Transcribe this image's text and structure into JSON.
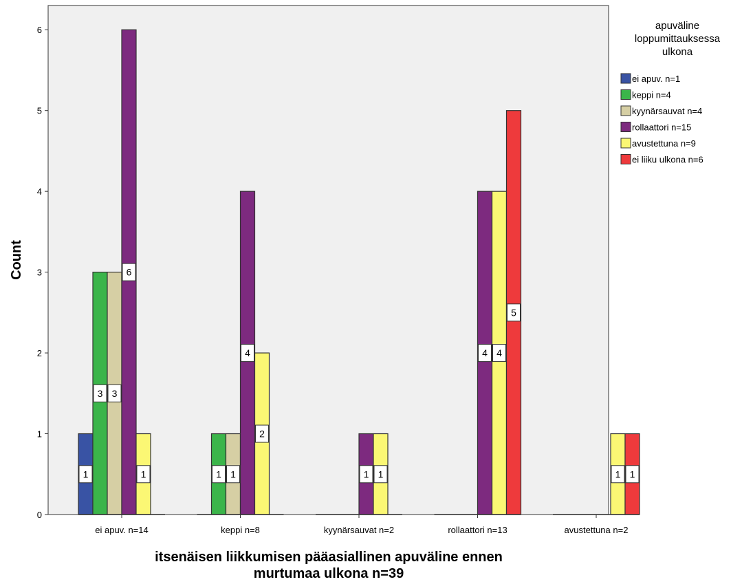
{
  "chart_data": {
    "type": "bar",
    "title": "",
    "xlabel_lines": [
      "itsenäisen liikkumisen pääasiallinen apuväline ennen",
      "murtumaa ulkona n=39"
    ],
    "ylabel": "Count",
    "ylim": [
      0,
      6.3
    ],
    "yticks": [
      "0",
      "1",
      "2",
      "3",
      "4",
      "5",
      "6"
    ],
    "categories": [
      "ei apuv. n=14",
      "keppi n=8",
      "kyynärsauvat n=2",
      "rollaattori n=13",
      "avustettuna n=2"
    ],
    "legend": {
      "title_lines": [
        "apuväline",
        "loppumittauksessa",
        "ulkona"
      ],
      "placement": "right"
    },
    "series": [
      {
        "name": "ei apuv. n=1",
        "color": "#3953a4",
        "values": [
          1,
          0,
          0,
          0,
          0
        ]
      },
      {
        "name": "keppi n=4",
        "color": "#3bb54a",
        "values": [
          3,
          1,
          0,
          0,
          0
        ]
      },
      {
        "name": "kyynärsauvat n=4",
        "color": "#d6cfa4",
        "values": [
          3,
          1,
          0,
          0,
          0
        ]
      },
      {
        "name": "rollaattori n=15",
        "color": "#7d2a7f",
        "values": [
          6,
          4,
          1,
          4,
          0
        ]
      },
      {
        "name": "avustettuna n=9",
        "color": "#fbf774",
        "values": [
          1,
          2,
          1,
          4,
          1
        ]
      },
      {
        "name": "ei liiku ulkona n=6",
        "color": "#ee3a3c",
        "values": [
          0,
          0,
          0,
          5,
          1
        ]
      }
    ],
    "plot_background": "#f0f0f0",
    "grid": false
  }
}
